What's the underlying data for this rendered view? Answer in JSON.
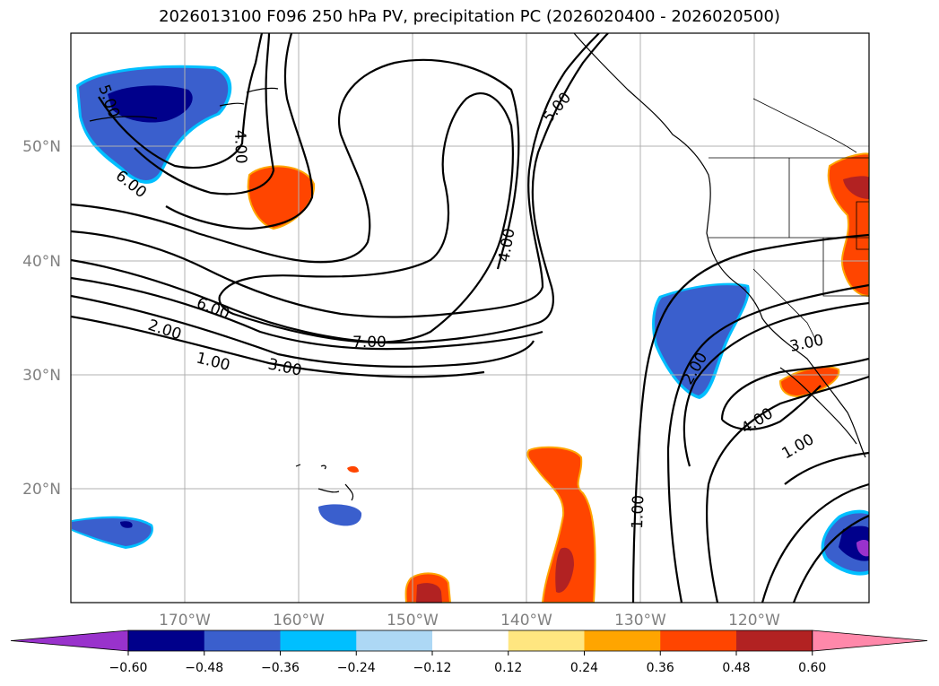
{
  "title": "2026013100 F096 250 hPa PV, precipitation PC (2026020400 - 2026020500)",
  "map": {
    "lat_labels": [
      "50°N",
      "40°N",
      "30°N",
      "20°N"
    ],
    "lon_labels": [
      "170°W",
      "160°W",
      "150°W",
      "140°W",
      "130°W",
      "120°W"
    ],
    "contour_labels": [
      "5.00",
      "4.00",
      "6.00",
      "6.00",
      "2.00",
      "1.00",
      "3.00",
      "7.00",
      "4.00",
      "5.00",
      "2.00",
      "4.00",
      "3.00",
      "1.00",
      "1.00"
    ]
  },
  "colorbar": {
    "ticks": [
      "−0.60",
      "−0.48",
      "−0.36",
      "−0.24",
      "−0.12",
      "0.12",
      "0.24",
      "0.36",
      "0.48",
      "0.60"
    ],
    "colors": [
      "#9932cc",
      "#00008b",
      "#3a5fcd",
      "#00bfff",
      "#add8f5",
      "#ffffff",
      "#ffe680",
      "#ffa500",
      "#ff4500",
      "#b22222",
      "#ff88aa"
    ]
  }
}
